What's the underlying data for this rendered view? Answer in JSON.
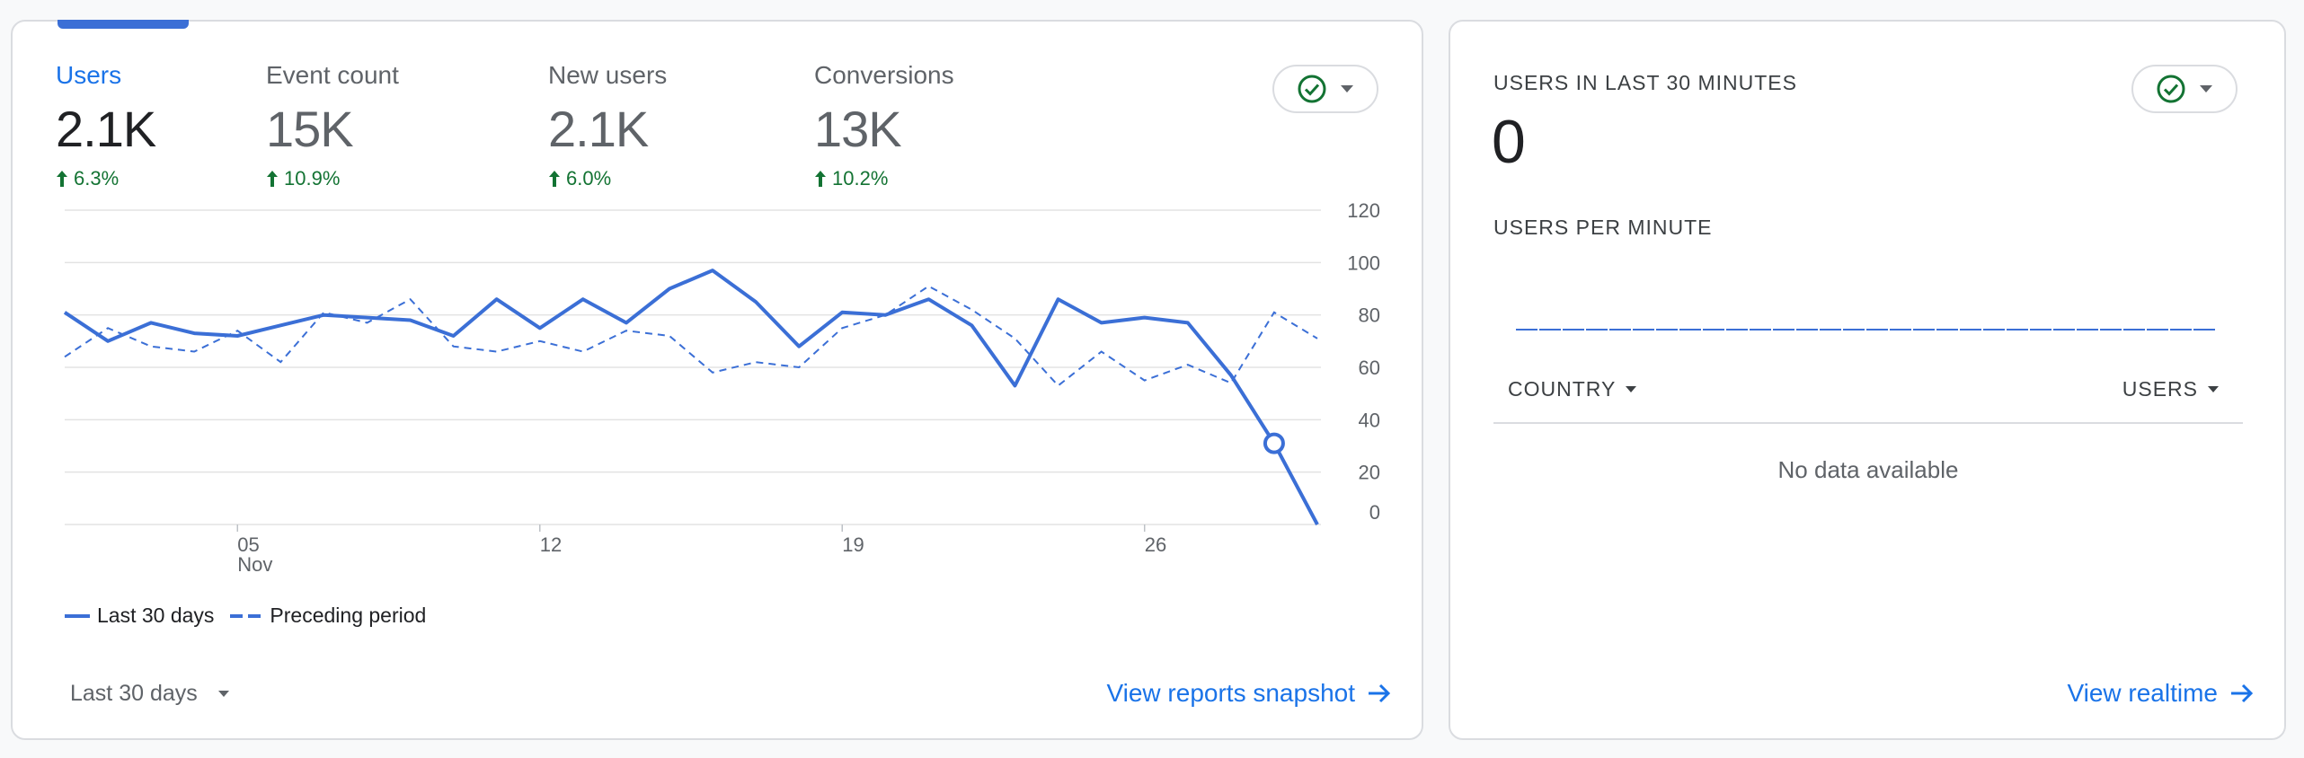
{
  "colors": {
    "accent": "#1a73e8",
    "line": "#3b6fd6",
    "positive": "#137333",
    "grid": "#e3e3e3",
    "muted": "#5f6368"
  },
  "overview": {
    "metrics": [
      {
        "label": "Users",
        "value": "2.1K",
        "change": "6.3%",
        "active": true
      },
      {
        "label": "Event count",
        "value": "15K",
        "change": "10.9%",
        "active": false
      },
      {
        "label": "New users",
        "value": "2.1K",
        "change": "6.0%",
        "active": false
      },
      {
        "label": "Conversions",
        "value": "13K",
        "change": "10.2%",
        "active": false
      }
    ],
    "status_icon": "check-circle-icon",
    "dropdown_icon": "caret-down-icon",
    "date_range": "Last 30 days",
    "link": "View reports snapshot"
  },
  "chart_data": {
    "type": "line",
    "x": [
      "Oct 30",
      "Oct 31",
      "Nov 1",
      "Nov 2",
      "Nov 3",
      "Nov 4",
      "Nov 5",
      "Nov 6",
      "Nov 7",
      "Nov 8",
      "Nov 9",
      "Nov 10",
      "Nov 11",
      "Nov 12",
      "Nov 13",
      "Nov 14",
      "Nov 15",
      "Nov 16",
      "Nov 17",
      "Nov 18",
      "Nov 19",
      "Nov 20",
      "Nov 21",
      "Nov 22",
      "Nov 23",
      "Nov 24",
      "Nov 25",
      "Nov 26",
      "Nov 27",
      "Nov 28"
    ],
    "x_ticks": [
      {
        "day": "05",
        "month": "Nov",
        "index": 4
      },
      {
        "day": "12",
        "month": "",
        "index": 11
      },
      {
        "day": "19",
        "month": "",
        "index": 18
      },
      {
        "day": "26",
        "month": "",
        "index": 25
      }
    ],
    "y_ticks": [
      0,
      20,
      40,
      60,
      80,
      100,
      120
    ],
    "ylim": [
      0,
      120
    ],
    "series": [
      {
        "name": "Last 30 days",
        "style": "solid",
        "values": [
          81,
          70,
          77,
          73,
          72,
          76,
          80,
          79,
          78,
          72,
          86,
          75,
          86,
          77,
          90,
          97,
          85,
          68,
          81,
          80,
          86,
          76,
          53,
          86,
          77,
          79,
          77,
          57,
          31,
          0
        ]
      },
      {
        "name": "Preceding period",
        "style": "dashed",
        "values": [
          64,
          75,
          68,
          66,
          74,
          62,
          81,
          77,
          86,
          68,
          66,
          70,
          66,
          74,
          72,
          58,
          62,
          60,
          75,
          80,
          91,
          82,
          71,
          53,
          66,
          55,
          61,
          54,
          81,
          71
        ]
      }
    ],
    "highlight_index": 28,
    "grid": true
  },
  "realtime": {
    "title": "USERS IN LAST 30 MINUTES",
    "value": "0",
    "subtitle": "USERS PER MINUTE",
    "minute_bars": [
      0,
      0,
      0,
      0,
      0,
      0,
      0,
      0,
      0,
      0,
      0,
      0,
      0,
      0,
      0,
      0,
      0,
      0,
      0,
      0,
      0,
      0,
      0,
      0,
      0,
      0,
      0,
      0,
      0,
      0
    ],
    "col_country": "COUNTRY",
    "col_users": "USERS",
    "empty_text": "No data available",
    "link": "View realtime"
  }
}
